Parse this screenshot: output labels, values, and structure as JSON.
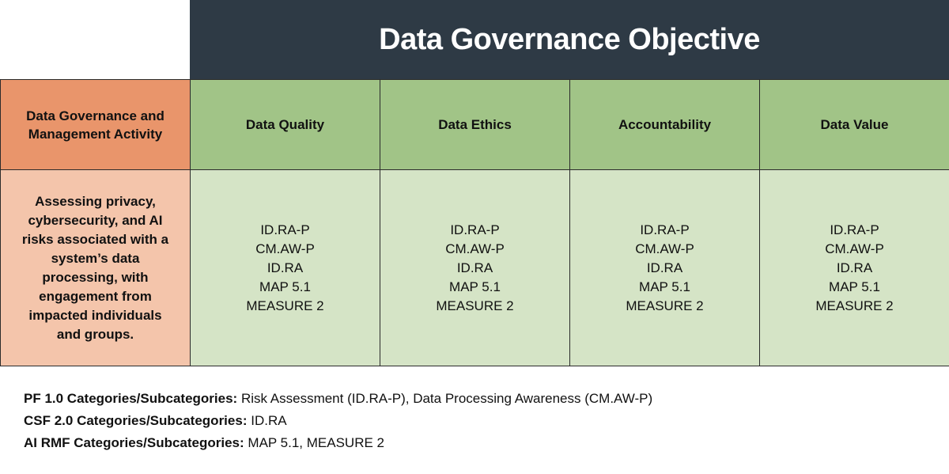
{
  "title": "Data Governance Objective",
  "corner_label": "Data Governance and Management Activity",
  "objectives": [
    "Data Quality",
    "Data Ethics",
    "Accountability",
    "Data Value"
  ],
  "activity": "Assessing privacy, cybersecurity, and AI risks associated with a system’s data processing, with engagement from impacted individuals and groups.",
  "mappings": [
    [
      "ID.RA-P",
      "CM.AW-P",
      "ID.RA",
      "MAP 5.1",
      "MEASURE 2"
    ],
    [
      "ID.RA-P",
      "CM.AW-P",
      "ID.RA",
      "MAP 5.1",
      "MEASURE 2"
    ],
    [
      "ID.RA-P",
      "CM.AW-P",
      "ID.RA",
      "MAP 5.1",
      "MEASURE 2"
    ],
    [
      "ID.RA-P",
      "CM.AW-P",
      "ID.RA",
      "MAP 5.1",
      "MEASURE 2"
    ]
  ],
  "footer": [
    {
      "label": "PF 1.0 Categories/Subcategories:",
      "value": "Risk Assessment (ID.RA-P), Data Processing Awareness (CM.AW-P)"
    },
    {
      "label": "CSF 2.0 Categories/Subcategories:",
      "value": "ID.RA"
    },
    {
      "label": "AI RMF Categories/Subcategories:",
      "value": "MAP 5.1, MEASURE 2"
    }
  ],
  "colors": {
    "title_bg": "#2e3a45",
    "corner_bg": "#e9956b",
    "objective_bg": "#a1c487",
    "activity_bg": "#f4c5ab",
    "mapping_bg": "#d5e4c6"
  }
}
